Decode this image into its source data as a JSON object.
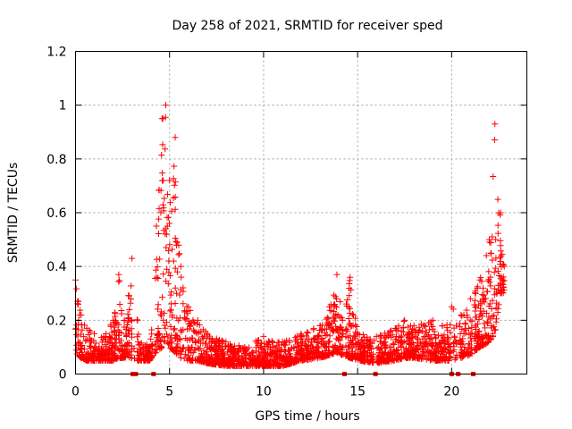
{
  "chart_data": {
    "type": "scatter",
    "title": "Day 258 of 2021, SRMTID for receiver sped",
    "xlabel": "GPS time / hours",
    "ylabel": "SRMTID / TECUs",
    "xlim": [
      0,
      24
    ],
    "ylim": [
      0,
      1.2
    ],
    "xticks": [
      0,
      5,
      10,
      15,
      20
    ],
    "yticks": [
      0,
      0.2,
      0.4,
      0.6,
      0.8,
      1,
      1.2
    ],
    "ytick_labels": [
      "0",
      "0.2",
      "0.4",
      "0.6",
      "0.8",
      "1",
      "1.2"
    ],
    "grid": true,
    "marker_color": "#ff0000",
    "series": [
      {
        "name": "SRMTID",
        "marker": "plus",
        "envelope": [
          [
            0.0,
            0.08,
            0.35
          ],
          [
            0.3,
            0.06,
            0.22
          ],
          [
            0.6,
            0.05,
            0.17
          ],
          [
            1.0,
            0.05,
            0.15
          ],
          [
            1.5,
            0.05,
            0.14
          ],
          [
            2.0,
            0.05,
            0.2
          ],
          [
            2.3,
            0.06,
            0.37
          ],
          [
            2.6,
            0.06,
            0.2
          ],
          [
            3.0,
            0.06,
            0.43
          ],
          [
            3.3,
            0.05,
            0.2
          ],
          [
            3.6,
            0.05,
            0.1
          ],
          [
            4.0,
            0.05,
            0.13
          ],
          [
            4.3,
            0.08,
            0.55
          ],
          [
            4.6,
            0.1,
            0.95
          ],
          [
            4.8,
            0.12,
            1.0
          ],
          [
            5.0,
            0.1,
            0.72
          ],
          [
            5.3,
            0.08,
            0.88
          ],
          [
            5.6,
            0.06,
            0.4
          ],
          [
            6.0,
            0.05,
            0.25
          ],
          [
            6.5,
            0.05,
            0.2
          ],
          [
            7.0,
            0.04,
            0.15
          ],
          [
            8.0,
            0.03,
            0.12
          ],
          [
            9.0,
            0.03,
            0.1
          ],
          [
            10.0,
            0.03,
            0.14
          ],
          [
            11.0,
            0.03,
            0.12
          ],
          [
            12.0,
            0.05,
            0.15
          ],
          [
            13.0,
            0.06,
            0.18
          ],
          [
            13.5,
            0.07,
            0.25
          ],
          [
            13.9,
            0.08,
            0.37
          ],
          [
            14.2,
            0.07,
            0.2
          ],
          [
            14.6,
            0.06,
            0.36
          ],
          [
            15.0,
            0.05,
            0.15
          ],
          [
            16.0,
            0.04,
            0.14
          ],
          [
            17.0,
            0.05,
            0.17
          ],
          [
            17.5,
            0.06,
            0.2
          ],
          [
            18.0,
            0.06,
            0.18
          ],
          [
            19.0,
            0.05,
            0.2
          ],
          [
            19.5,
            0.05,
            0.18
          ],
          [
            20.0,
            0.05,
            0.25
          ],
          [
            20.5,
            0.06,
            0.22
          ],
          [
            21.0,
            0.07,
            0.28
          ],
          [
            21.5,
            0.1,
            0.35
          ],
          [
            22.0,
            0.12,
            0.5
          ],
          [
            22.3,
            0.15,
            0.93
          ],
          [
            22.6,
            0.3,
            0.6
          ],
          [
            22.8,
            0.3,
            0.4
          ]
        ],
        "zero_markers_x": [
          3.05,
          3.2,
          4.15,
          14.3,
          15.95,
          20.0,
          20.35,
          21.15
        ]
      }
    ]
  }
}
